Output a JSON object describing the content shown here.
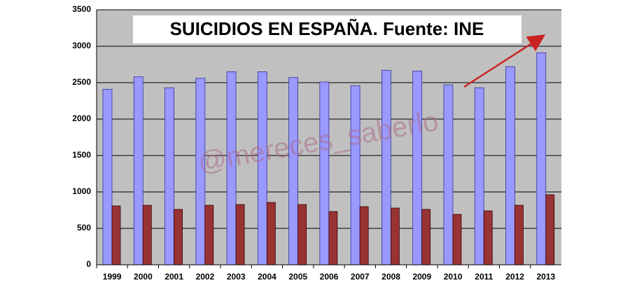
{
  "chart_data": {
    "type": "bar",
    "title": "SUICIDIOS EN ESPAÑA. Fuente: INE",
    "annotation": "@mereces_saberlo",
    "categories": [
      "1999",
      "2000",
      "2001",
      "2002",
      "2003",
      "2004",
      "2005",
      "2006",
      "2007",
      "2008",
      "2009",
      "2010",
      "2011",
      "2012",
      "2013"
    ],
    "series": [
      {
        "color": "#9999ff",
        "values": [
          2410,
          2580,
          2430,
          2560,
          2650,
          2650,
          2570,
          2510,
          2460,
          2670,
          2660,
          2470,
          2430,
          2720,
          2910
        ]
      },
      {
        "color": "#993333",
        "values": [
          808,
          817,
          760,
          817,
          827,
          856,
          827,
          731,
          798,
          779,
          760,
          692,
          740,
          817,
          962
        ]
      }
    ],
    "ylim": [
      0,
      3500
    ],
    "yticks": [
      0,
      500,
      1000,
      1500,
      2000,
      2500,
      3000,
      3500
    ],
    "grid": true,
    "background": "#c0c0c0"
  }
}
